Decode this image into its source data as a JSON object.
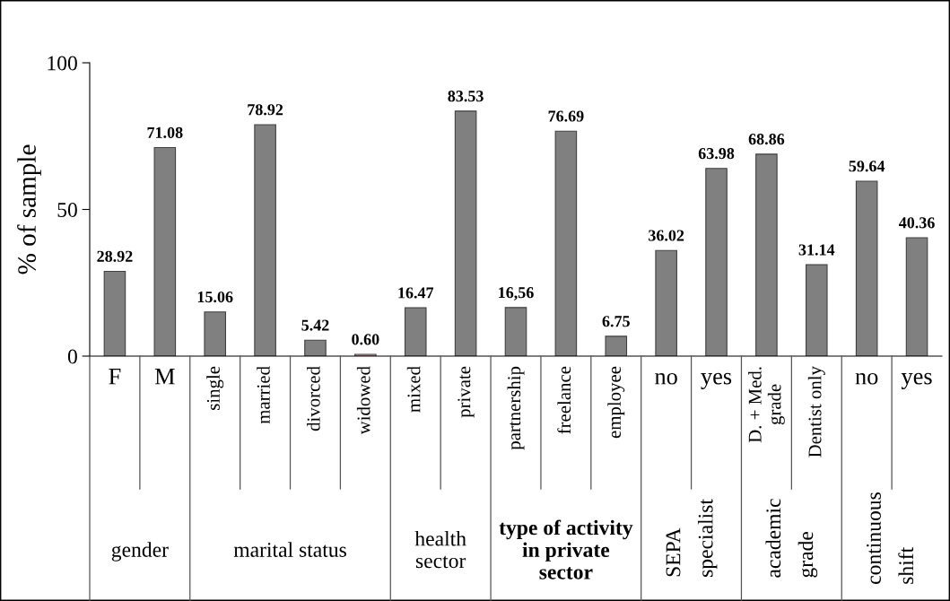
{
  "chart_data": {
    "type": "bar",
    "ylabel": "% of sample",
    "categories": [
      "F",
      "M",
      "single",
      "married",
      "divorced",
      "widowed",
      "mixed",
      "private",
      "partnership",
      "freelance",
      "employee",
      "no",
      "yes",
      "D. + Med.\ngrade",
      "Dentist only",
      "no",
      "yes"
    ],
    "values": [
      28.92,
      71.08,
      15.06,
      78.92,
      5.42,
      0.6,
      16.47,
      83.53,
      16.56,
      76.69,
      6.75,
      36.02,
      63.98,
      68.86,
      31.14,
      59.64,
      40.36
    ],
    "colors": [
      "#808080",
      "#808080",
      "#808080",
      "#808080",
      "#808080",
      "#d9a0a8",
      "#808080",
      "#808080",
      "#808080",
      "#808080",
      "#808080",
      "#808080",
      "#808080",
      "#808080",
      "#808080",
      "#808080",
      "#808080"
    ],
    "value_labels": [
      "28.92",
      "71.08",
      "15.06",
      "78.92",
      "5.42",
      "0.60",
      "16.47",
      "83.53",
      "16,56",
      "76.69",
      "6.75",
      "36.02",
      "63.98",
      "68.86",
      "31.14",
      "59.64",
      "40.36"
    ],
    "annotations": [
      "gender",
      "marital status",
      "health\nsector",
      "type of activity\nin private\nsector",
      "SEPA\nspecialist",
      "academic\ngrade",
      "continuous\nshift"
    ],
    "ylim": [
      0,
      100
    ],
    "yticks": [
      0,
      50,
      100
    ],
    "grid": false
  }
}
